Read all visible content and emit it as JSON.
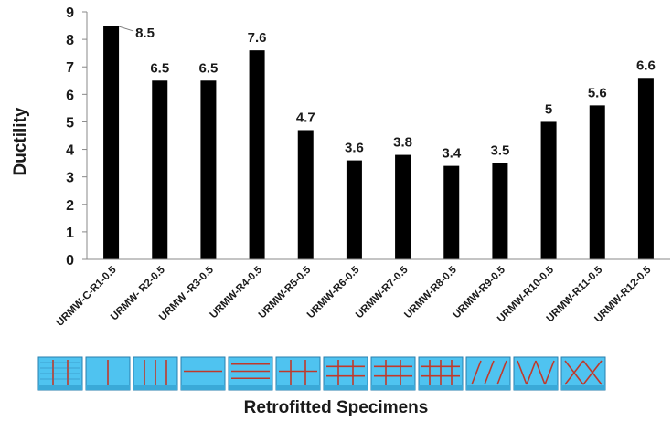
{
  "chart_data": {
    "type": "bar",
    "categories": [
      "URMW-C-R1-0.5",
      "URMW- R2-0.5",
      "URMW -R3-0.5",
      "URMW-R4-0.5",
      "URMW-R5-0.5",
      "URMW-R6-0.5",
      "URMW-R7-0.5",
      "URMW-R8-0.5",
      "URMW-R9-0.5",
      "URMW-R10-0.5",
      "URMW-R11-0.5",
      "URMW-R12-0.5"
    ],
    "values": [
      8.5,
      6.5,
      6.5,
      7.6,
      4.7,
      3.6,
      3.8,
      3.4,
      3.5,
      5,
      5.6,
      6.6
    ],
    "data_labels": [
      "8.5",
      "6.5",
      "6.5",
      "7.6",
      "4.7",
      "3.6",
      "3.8",
      "3.4",
      "3.5",
      "5",
      "5.6",
      "6.6"
    ],
    "xlabel": "Retrofitted Specimens",
    "ylabel": "Ductility",
    "ylim": [
      0,
      9
    ],
    "yticks": [
      "0",
      "1",
      "2",
      "3",
      "4",
      "5",
      "6",
      "7",
      "8",
      "9"
    ],
    "grid": false,
    "bar_color": "#000000"
  },
  "specimen_thumbnails": [
    "vertical-strips",
    "vertical-strips",
    "vertical-strips",
    "horizontal-strips",
    "horizontal-strips",
    "grid-strips",
    "grid-strips",
    "grid-strips",
    "grid-strips",
    "diagonal-strips",
    "diagonal-strips",
    "cross-diagonal-strips"
  ],
  "colors": {
    "thumbnail_bg": "#4fc3f0",
    "thumbnail_strip": "#c0392b"
  }
}
